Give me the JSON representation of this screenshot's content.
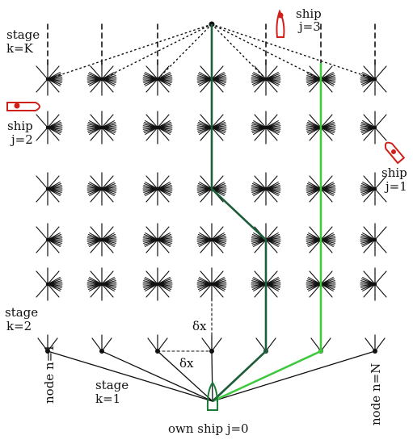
{
  "labels": {
    "stage_top_1": "stage",
    "stage_top_2": "k=K",
    "stage_mid_1": "stage",
    "stage_mid_2": "k=2",
    "stage_bot_1": "stage",
    "stage_bot_2": "k=1",
    "ship3_1": "ship",
    "ship3_2": "j=3",
    "ship2_1": "ship",
    "ship2_2": "j=2",
    "ship1_1": "ship",
    "ship1_2": "j=1",
    "own_ship": "own ship j=0",
    "node_first": "node n=1",
    "node_last": "node n=N",
    "dx_vertical": "δx",
    "dx_horizontal": "δx"
  },
  "icons": {
    "target_ship": "ship-icon",
    "own_ship": "own-ship-icon"
  },
  "colors": {
    "grid": "#111111",
    "target_ship": "#d0201a",
    "own_ship": "#1b7a3a",
    "path_dark": "#1e5e3a",
    "path_light": "#3ec93e"
  }
}
